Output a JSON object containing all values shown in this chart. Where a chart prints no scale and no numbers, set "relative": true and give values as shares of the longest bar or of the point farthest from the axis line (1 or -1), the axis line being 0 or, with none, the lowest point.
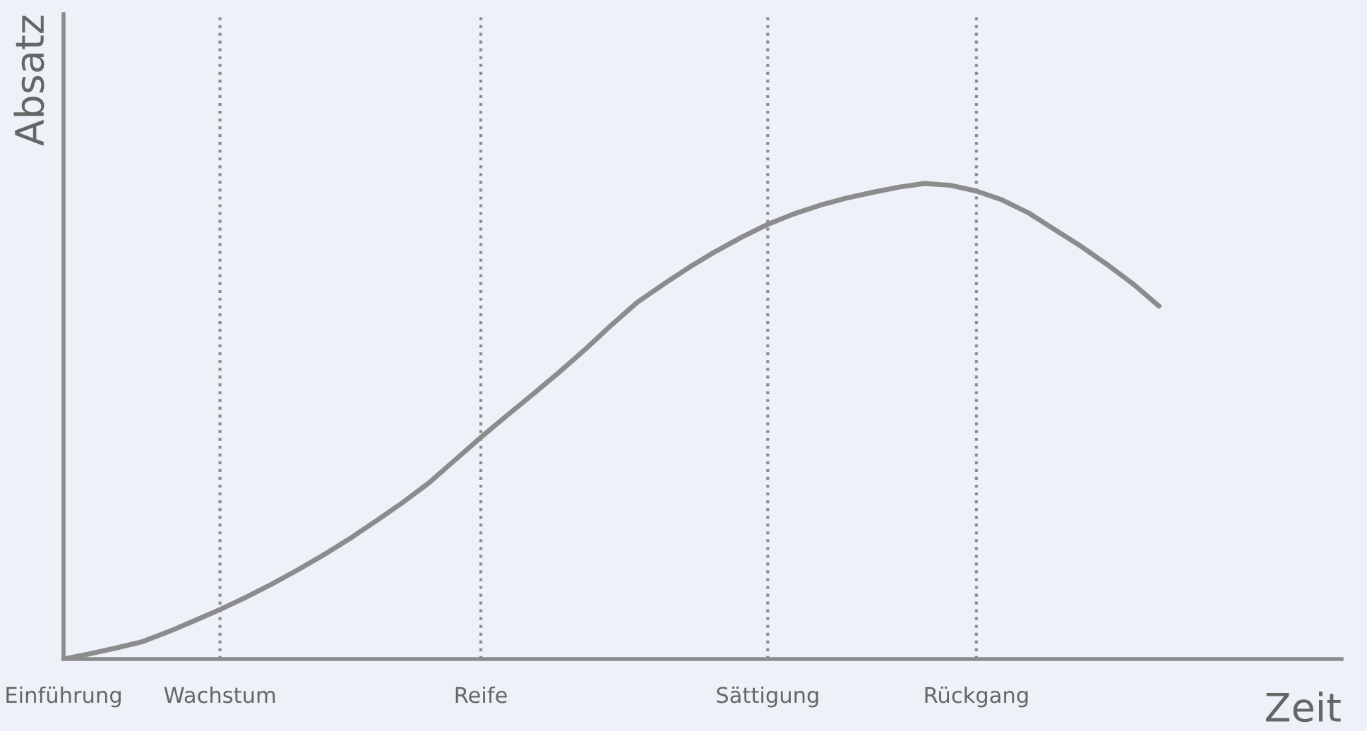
{
  "chart_data": {
    "type": "line",
    "relative": true,
    "xlabel": "Zeit",
    "ylabel": "Absatz",
    "categories": [
      "Einführung",
      null,
      null,
      null,
      null,
      null,
      "Wachstum",
      null,
      null,
      null,
      null,
      null,
      null,
      null,
      null,
      null,
      "Reife",
      null,
      null,
      null,
      null,
      null,
      null,
      null,
      null,
      null,
      null,
      "Sättigung",
      null,
      null,
      null,
      null,
      null,
      null,
      null,
      "Rückgang",
      null,
      null,
      null,
      null,
      null,
      null,
      null,
      null,
      null,
      null,
      null,
      null,
      null,
      null
    ],
    "series": [
      {
        "color": "#8c8c8c",
        "values": [
          0,
          0.011,
          0.023,
          0.036,
          0.057,
          0.08,
          0.104,
          0.13,
          0.158,
          0.188,
          0.22,
          0.254,
          0.291,
          0.329,
          0.37,
          0.418,
          0.466,
          0.512,
          0.557,
          0.603,
          0.651,
          0.702,
          0.75,
          0.788,
          0.824,
          0.857,
          0.887,
          0.914,
          0.936,
          0.954,
          0.969,
          0.981,
          0.992,
          1.0,
          0.996,
          0.984,
          0.965,
          0.938,
          0.903,
          0.868,
          0.83,
          0.789,
          0.742,
          null,
          null,
          null,
          null,
          null,
          null,
          null
        ]
      }
    ],
    "ref_lines": [
      {
        "axis": "x",
        "value": "Wachstum",
        "line_style": "dotted",
        "color": "#8c8c8c"
      },
      {
        "axis": "x",
        "value": "Reife",
        "line_style": "dotted",
        "color": "#8c8c8c"
      },
      {
        "axis": "x",
        "value": "Sättigung",
        "line_style": "dotted",
        "color": "#8c8c8c"
      },
      {
        "axis": "x",
        "value": "Rückgang",
        "line_style": "dotted",
        "color": "#8c8c8c"
      }
    ],
    "grid": false,
    "marker": "none",
    "line_style": "solid"
  }
}
